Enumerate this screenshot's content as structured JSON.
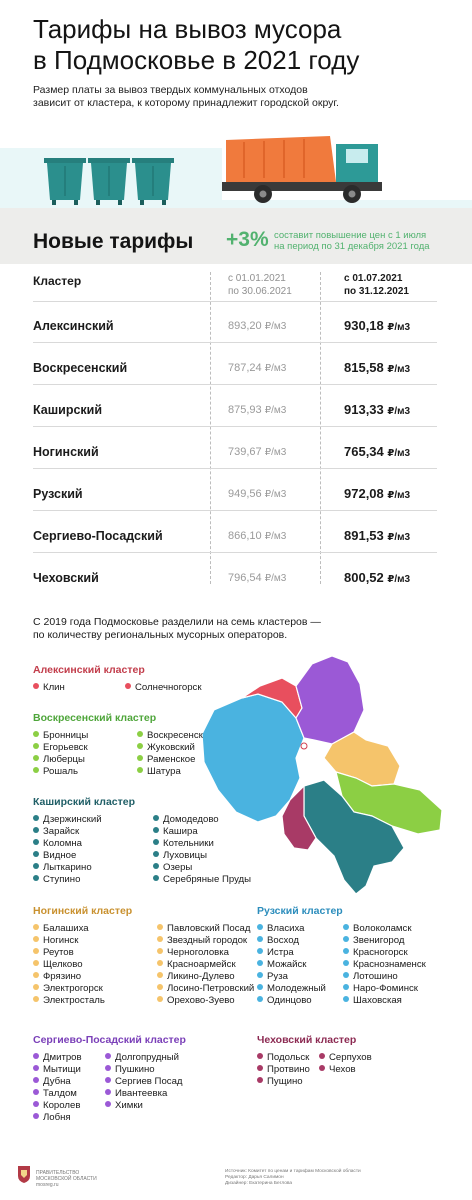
{
  "header": {
    "title_line1": "Тарифы на вывоз мусора",
    "title_line2": "в Подмосковье в 2021 году",
    "subtitle_line1": "Размер платы за вывоз твердых коммунальных отходов",
    "subtitle_line2": "зависит от кластера, к которому принадлежит городской округ."
  },
  "banner": {
    "title": "Новые тарифы",
    "percent": "+3%",
    "note_line1": "составит повышение цен с 1 июля",
    "note_line2": "на период по 31 декабря 2021 года"
  },
  "table": {
    "col_label": "Кластер",
    "col1_line1": "с 01.01.2021",
    "col1_line2": "по 30.06.2021",
    "col2_line1": "с 01.07.2021",
    "col2_line2": "по 31.12.2021",
    "unit": "₽/м3",
    "rows": [
      {
        "name": "Алексинский",
        "old": "893,20",
        "new": "930,18"
      },
      {
        "name": "Воскресенский",
        "old": "787,24",
        "new": "815,58"
      },
      {
        "name": "Каширский",
        "old": "875,93",
        "new": "913,33"
      },
      {
        "name": "Ногинский",
        "old": "739,67",
        "new": "765,34"
      },
      {
        "name": "Рузский",
        "old": "949,56",
        "new": "972,08"
      },
      {
        "name": "Сергиево-Посадский",
        "old": "866,10",
        "new": "891,53"
      },
      {
        "name": "Чеховский",
        "old": "796,54",
        "new": "800,52"
      }
    ]
  },
  "lead": {
    "line1": "С 2019 года Подмосковье разделили на семь кластеров —",
    "line2": "по количеству региональных мусорных операторов."
  },
  "clusters": {
    "aleksin": {
      "title": "Алексинский кластер",
      "color": "#e84f5e",
      "head_color": "#c23d4b",
      "col1": [
        "Клин"
      ],
      "col2": [
        "Солнечногорск"
      ]
    },
    "voskresensk": {
      "title": "Воскресенский кластер",
      "color": "#8ccf44",
      "head_color": "#4ea53a",
      "col1": [
        "Бронницы",
        "Егорьевск",
        "Люберцы",
        "Рошаль"
      ],
      "col2": [
        "Воскресенск",
        "Жуковский",
        "Раменское",
        "Шатура"
      ]
    },
    "kashira": {
      "title": "Каширский кластер",
      "color": "#2b7f87",
      "head_color": "#1f5e66",
      "col1": [
        "Дзержинский",
        "Зарайск",
        "Коломна",
        "Видное",
        "Лыткарино",
        "Ступино"
      ],
      "col2": [
        "Домодедово",
        "Кашира",
        "Котельники",
        "Луховицы",
        "Озеры",
        "Серебряные Пруды"
      ]
    },
    "noginsk": {
      "title": "Ногинский кластер",
      "color": "#f5c46b",
      "head_color": "#c9912f",
      "col1": [
        "Балашиха",
        "Ногинск",
        "Реутов",
        "Щелково",
        "Фрязино",
        "Электрогорск",
        "Электросталь"
      ],
      "col2": [
        "Павловский Посад",
        "Звездный городок",
        "Черноголовка",
        "Красноармейск",
        "Ликино-Дулево",
        "Лосино-Петровский",
        "Орехово-Зуево"
      ]
    },
    "ruza": {
      "title": "Рузский кластер",
      "color": "#4ab3e0",
      "head_color": "#2c8dbc",
      "col1": [
        "Власиха",
        "Восход",
        "Истра",
        "Можайск",
        "Руза",
        "Молодежный",
        "Одинцово"
      ],
      "col2": [
        "Волоколамск",
        "Звенигород",
        "Красногорск",
        "Краснознаменск",
        "Лотошино",
        "Наро-Фоминск",
        "Шаховская"
      ]
    },
    "sergiev": {
      "title": "Сергиево-Посадский кластер",
      "color": "#9b59d6",
      "head_color": "#7a3fb8",
      "col1": [
        "Дмитров",
        "Мытищи",
        "Дубна",
        "Талдом",
        "Королев",
        "Лобня"
      ],
      "col2": [
        "Долгопрудный",
        "Пушкино",
        "Сергиев Посад",
        "Ивантеевка",
        "Химки"
      ]
    },
    "chekhov": {
      "title": "Чеховский кластер",
      "color": "#a83a66",
      "head_color": "#8c2a52",
      "col1": [
        "Подольск",
        "Протвино",
        "Пущино"
      ],
      "col2": [
        "Серпухов",
        "Чехов"
      ]
    }
  },
  "footer": {
    "org_line1": "ПРАВИТЕЛЬСТВО",
    "org_line2": "МОСКОВСКОЙ ОБЛАСТИ",
    "org_line3": "mosreg.ru",
    "src_line1": "Источник: Комитет по ценам и тарифам Московской области",
    "src_line2": "Редактор: Дарья Салимон",
    "src_line3": "Дизайнер: Екатерина Беглова"
  },
  "colors": {
    "bin": "#2b8f8d",
    "truck_body": "#f07a3d",
    "truck_cab": "#2d9a97",
    "accent_green": "#52b26f"
  }
}
